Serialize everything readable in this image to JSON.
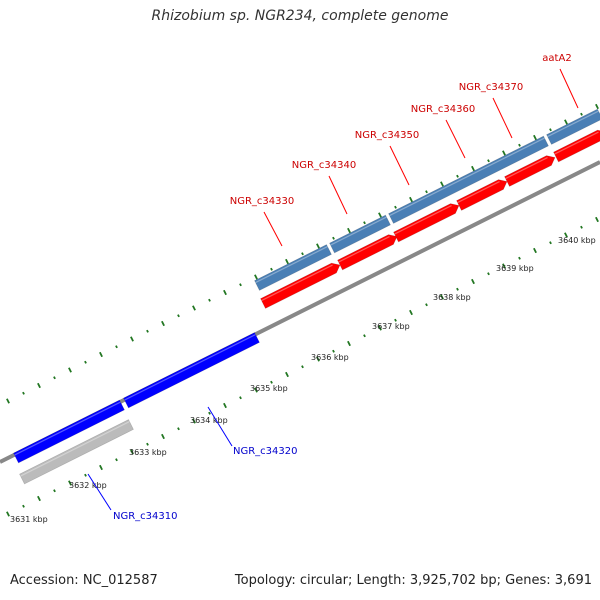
{
  "title": "Rhizobium sp. NGR234, complete genome",
  "footer": {
    "accession": "Accession: NC_012587",
    "topology": "Topology: circular; Length: 3,925,702 bp; Genes: 3,691"
  },
  "colors": {
    "forward_gene": "#ff0000",
    "forward_gene_label": "#cc0000",
    "cds_feature": "#4a7fb5",
    "reverse_gene": "#0000ff",
    "reverse_gene_label": "#0000cc",
    "pseudo_feature": "#bbbbbb",
    "backbone": "#888888",
    "tick": "#227722"
  },
  "kbp_labels": [
    "3631 kbp",
    "3632 kbp",
    "3633 kbp",
    "3634 kbp",
    "3635 kbp",
    "3636 kbp",
    "3637 kbp",
    "3638 kbp",
    "3639 kbp",
    "3640 kbp"
  ],
  "genes_forward": [
    "NGR_c34330",
    "NGR_c34340",
    "NGR_c34350",
    "NGR_c34360",
    "NGR_c34370",
    "aatA2"
  ],
  "genes_reverse": [
    "NGR_c34310",
    "NGR_c34320"
  ]
}
